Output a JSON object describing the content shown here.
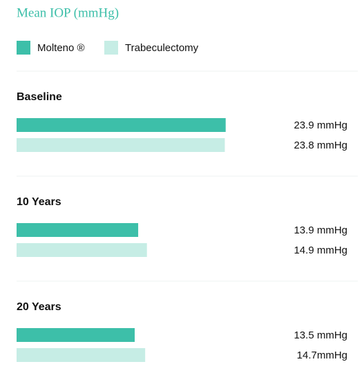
{
  "chart_data": {
    "type": "bar",
    "orientation": "horizontal",
    "title": "Mean IOP (mmHg)",
    "categories": [
      "Baseline",
      "10 Years",
      "20 Years"
    ],
    "series": [
      {
        "name": "Molteno ®",
        "color": "#3dbfa9",
        "values": [
          23.9,
          13.9,
          13.5
        ],
        "value_labels": [
          "23.9 mmHg",
          "13.9 mmHg",
          "13.5 mmHg"
        ]
      },
      {
        "name": "Trabeculectomy",
        "color": "#c6ede5",
        "values": [
          23.8,
          14.9,
          14.7
        ],
        "value_labels": [
          "23.8 mmHg",
          "14.9 mmHg",
          "14.7mmHg"
        ]
      }
    ],
    "xlim": [
      0,
      24
    ]
  }
}
